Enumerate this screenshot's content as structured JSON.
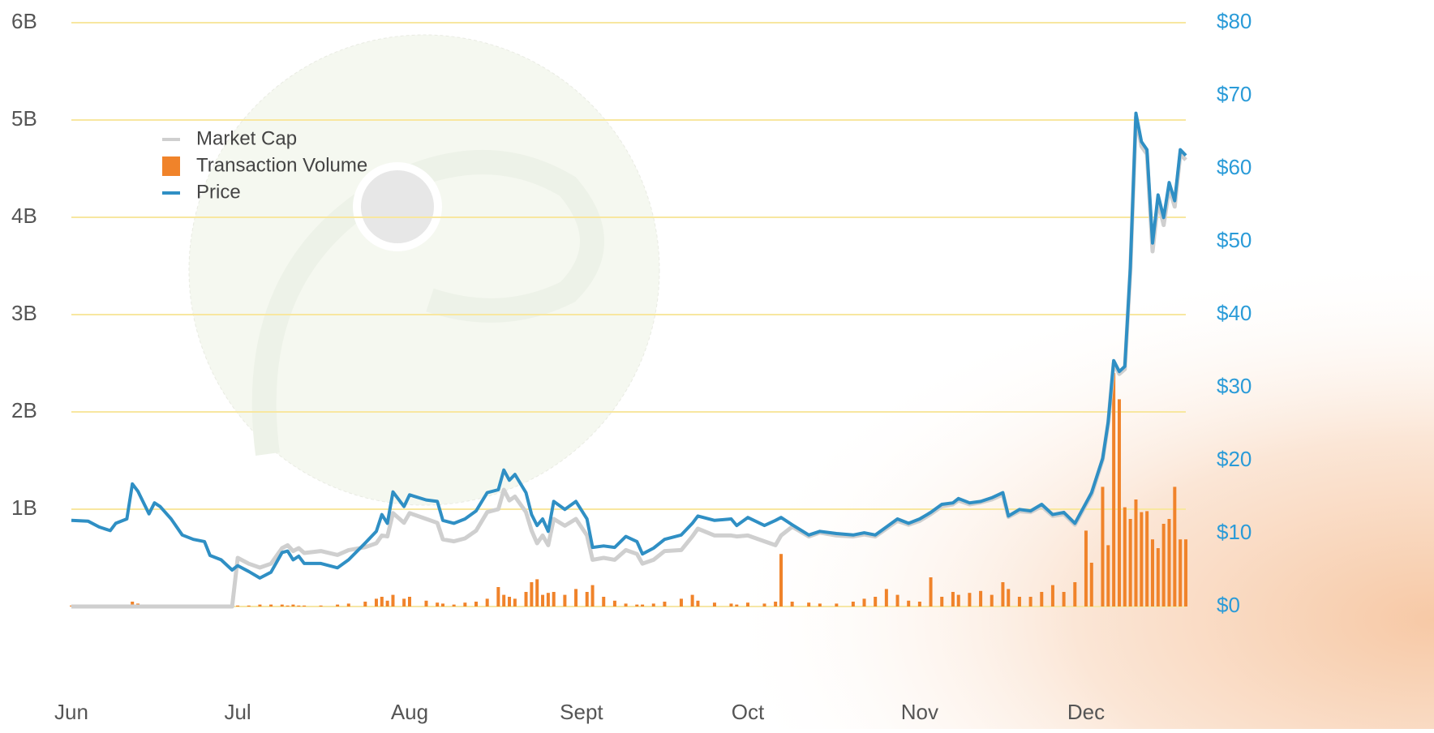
{
  "chart_data": {
    "type": "line",
    "legend": "upper left",
    "grid": true,
    "x": [
      0,
      3,
      5,
      7,
      8,
      10,
      11,
      12,
      14,
      15,
      16,
      18,
      20,
      22,
      24,
      25,
      27,
      29,
      30,
      32,
      34,
      36,
      38,
      39,
      40,
      41,
      42,
      45,
      48,
      50,
      53,
      55,
      56,
      57,
      58,
      60,
      61,
      64,
      66,
      67,
      69,
      71,
      73,
      75,
      77,
      78,
      79,
      80,
      82,
      83,
      84,
      85,
      86,
      87,
      89,
      91,
      93,
      94,
      96,
      98,
      100,
      102,
      103,
      105,
      107,
      110,
      112,
      113,
      116,
      119,
      120,
      122,
      125,
      127,
      128,
      130,
      133,
      135,
      138,
      141,
      143,
      145,
      147,
      149,
      151,
      153,
      155,
      157,
      159,
      160,
      162,
      164,
      166,
      168,
      169,
      171,
      173,
      175,
      177,
      179,
      181,
      183,
      184,
      186,
      187,
      188,
      189,
      190,
      191,
      192,
      193,
      194,
      195,
      196,
      197,
      198,
      199,
      200,
      201
    ],
    "xlim": [
      0,
      201
    ],
    "xticks": [
      {
        "value": 0,
        "label": "Jun"
      },
      {
        "value": 30,
        "label": "Jul"
      },
      {
        "value": 61,
        "label": "Aug"
      },
      {
        "value": 92,
        "label": "Sept"
      },
      {
        "value": 122,
        "label": "Oct"
      },
      {
        "value": 153,
        "label": "Nov"
      },
      {
        "value": 183,
        "label": "Dec"
      }
    ],
    "ylim": [
      0,
      6
    ],
    "yticks": [
      {
        "value": 1,
        "label": "1B"
      },
      {
        "value": 2,
        "label": "2B"
      },
      {
        "value": 3,
        "label": "3B"
      },
      {
        "value": 4,
        "label": "4B"
      },
      {
        "value": 5,
        "label": "5B"
      },
      {
        "value": 6,
        "label": "6B"
      }
    ],
    "y2lim": [
      0,
      80
    ],
    "y2ticks": [
      {
        "value": 0,
        "label": "$0"
      },
      {
        "value": 10,
        "label": "$10"
      },
      {
        "value": 20,
        "label": "$20"
      },
      {
        "value": 30,
        "label": "$30"
      },
      {
        "value": 40,
        "label": "$40"
      },
      {
        "value": 50,
        "label": "$50"
      },
      {
        "value": 60,
        "label": "$60"
      },
      {
        "value": 70,
        "label": "$70"
      },
      {
        "value": 80,
        "label": "$80"
      }
    ],
    "series": [
      {
        "name": "Market Cap",
        "color": "#cfcfcf",
        "kind": "line",
        "values": [
          0,
          0,
          0,
          0,
          0,
          0,
          0,
          0,
          0,
          0,
          0,
          0,
          0,
          0,
          0,
          0,
          0,
          0,
          0.5,
          0.44,
          0.4,
          0.44,
          0.6,
          0.63,
          0.57,
          0.6,
          0.55,
          0.57,
          0.53,
          0.58,
          0.61,
          0.65,
          0.73,
          0.72,
          0.96,
          0.86,
          0.96,
          0.9,
          0.86,
          0.69,
          0.67,
          0.7,
          0.78,
          0.97,
          1.0,
          1.2,
          1.09,
          1.13,
          0.97,
          0.78,
          0.65,
          0.73,
          0.63,
          0.9,
          0.83,
          0.9,
          0.73,
          0.48,
          0.5,
          0.48,
          0.58,
          0.54,
          0.44,
          0.48,
          0.57,
          0.58,
          0.72,
          0.8,
          0.73,
          0.73,
          0.72,
          0.73,
          0.67,
          0.63,
          0.73,
          0.82,
          0.72,
          0.76,
          0.73,
          0.72,
          0.74,
          0.72,
          0.8,
          0.88,
          0.84,
          0.88,
          0.95,
          1.03,
          1.05,
          1.09,
          1.05,
          1.07,
          1.1,
          1.15,
          0.92,
          0.98,
          0.97,
          1.03,
          0.93,
          0.95,
          0.84,
          1.05,
          1.15,
          1.51,
          1.88,
          2.5,
          2.39,
          2.44,
          3.45,
          5.03,
          4.73,
          4.65,
          3.65,
          4.17,
          3.92,
          4.3,
          4.11,
          4.65,
          4.59
        ]
      },
      {
        "name": "Transaction Volume",
        "color": "#f0832a",
        "kind": "bar",
        "values": [
          0.01,
          0.01,
          0.01,
          0.01,
          0.01,
          0.01,
          0.05,
          0.03,
          0.02,
          0.02,
          0.02,
          0.01,
          0.01,
          0.01,
          0.01,
          0.01,
          0.01,
          0.01,
          0.01,
          0.01,
          0.02,
          0.02,
          0.02,
          0.01,
          0.02,
          0.01,
          0.01,
          0.01,
          0.02,
          0.03,
          0.05,
          0.08,
          0.1,
          0.06,
          0.12,
          0.08,
          0.1,
          0.06,
          0.04,
          0.03,
          0.02,
          0.04,
          0.05,
          0.08,
          0.2,
          0.12,
          0.1,
          0.08,
          0.15,
          0.25,
          0.28,
          0.12,
          0.14,
          0.15,
          0.12,
          0.18,
          0.15,
          0.22,
          0.1,
          0.06,
          0.03,
          0.02,
          0.02,
          0.03,
          0.05,
          0.08,
          0.12,
          0.06,
          0.04,
          0.03,
          0.02,
          0.04,
          0.03,
          0.05,
          0.54,
          0.05,
          0.04,
          0.03,
          0.03,
          0.05,
          0.08,
          0.1,
          0.18,
          0.12,
          0.06,
          0.05,
          0.3,
          0.1,
          0.15,
          0.12,
          0.14,
          0.16,
          0.12,
          0.25,
          0.18,
          0.1,
          0.1,
          0.15,
          0.22,
          0.15,
          0.25,
          0.78,
          0.45,
          1.23,
          0.63,
          2.4,
          2.13,
          1.02,
          0.9,
          1.1,
          0.97,
          0.98,
          0.69,
          0.6,
          0.85,
          0.9,
          1.23,
          0.69,
          0.69
        ]
      },
      {
        "name": "Price",
        "color": "#2f8fc4",
        "kind": "line",
        "axis": "y2",
        "values": [
          11.8,
          11.7,
          10.9,
          10.4,
          11.4,
          12,
          16.8,
          15.8,
          12.7,
          14.2,
          13.7,
          12,
          9.8,
          9.2,
          8.9,
          7,
          6.4,
          5,
          5.6,
          4.8,
          3.9,
          4.7,
          7.4,
          7.6,
          6.4,
          6.9,
          5.9,
          5.9,
          5.3,
          6.4,
          8.7,
          10.3,
          12.6,
          11.4,
          15.7,
          13.7,
          15.3,
          14.6,
          14.4,
          11.8,
          11.4,
          12,
          13.1,
          15.6,
          16,
          18.7,
          17.3,
          18.1,
          15.6,
          12.6,
          11.1,
          12,
          10.3,
          14.4,
          13.3,
          14.4,
          12,
          8.1,
          8.3,
          8.1,
          9.6,
          8.9,
          7.2,
          8,
          9.2,
          9.8,
          11.4,
          12.4,
          11.8,
          12,
          11.1,
          12.2,
          11.1,
          11.8,
          12.2,
          11.2,
          9.8,
          10.3,
          10,
          9.8,
          10.1,
          9.8,
          10.9,
          12,
          11.4,
          12,
          12.9,
          14,
          14.2,
          14.8,
          14.2,
          14.4,
          14.9,
          15.6,
          12.4,
          13.3,
          13.1,
          14,
          12.6,
          12.9,
          11.4,
          14.2,
          15.6,
          20.3,
          25.3,
          33.7,
          32.2,
          32.9,
          46.4,
          67.6,
          63.7,
          62.6,
          49.8,
          56.4,
          53.3,
          58.1,
          55.6,
          62.6,
          61.8
        ]
      }
    ]
  }
}
